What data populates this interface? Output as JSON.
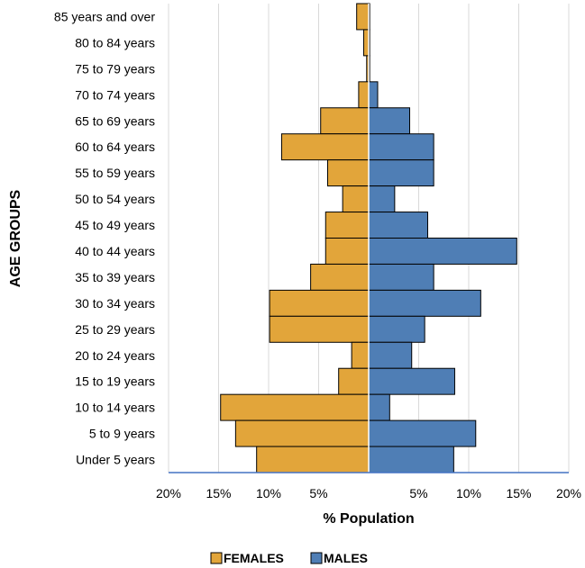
{
  "chart_data": {
    "type": "bar",
    "orientation": "horizontal-population-pyramid",
    "categories": [
      "85 years and over",
      "80 to 84 years",
      "75 to 79 years",
      "70 to 74 years",
      "65 to 69 years",
      "60 to 64 years",
      "55 to 59 years",
      "50 to 54 years",
      "45 to 49 years",
      "40 to 44 years",
      "35 to 39 years",
      "30 to 34 years",
      "25 to 29 years",
      "20 to 24 years",
      "15 to 19 years",
      "10 to 14 years",
      "5 to 9 years",
      "Under 5 years"
    ],
    "series": [
      {
        "name": "FEMALES",
        "color": "#E2A53A",
        "values": [
          1.2,
          0.5,
          0.2,
          1.0,
          4.8,
          8.7,
          4.1,
          2.6,
          4.3,
          4.3,
          5.8,
          9.9,
          9.9,
          1.7,
          3.0,
          14.8,
          13.3,
          11.2
        ]
      },
      {
        "name": "MALES",
        "color": "#4F7EB5",
        "values": [
          0.1,
          0.1,
          0.1,
          0.9,
          4.1,
          6.5,
          6.5,
          2.6,
          5.9,
          14.8,
          6.5,
          11.2,
          5.6,
          4.3,
          8.6,
          2.1,
          10.7,
          8.5
        ]
      }
    ],
    "xlabel": "% Population",
    "ylabel": "AGE GROUPS",
    "xlim": [
      -20,
      20
    ],
    "xticks": [
      -20,
      -15,
      -10,
      -5,
      5,
      10,
      15,
      20
    ],
    "xtick_labels": [
      "20%",
      "15%",
      "10%",
      "5%",
      "5%",
      "10%",
      "15%",
      "20%"
    ],
    "grid": true,
    "legend": {
      "position": "bottom",
      "entries": [
        "FEMALES",
        "MALES"
      ]
    }
  }
}
